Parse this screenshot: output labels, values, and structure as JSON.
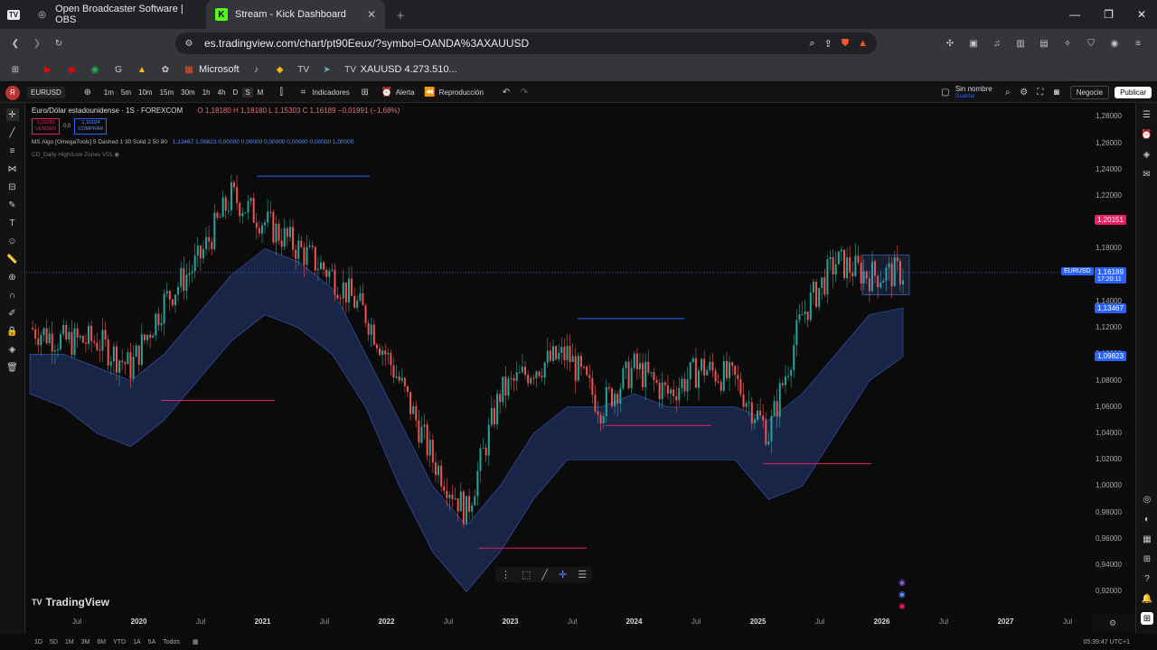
{
  "browser": {
    "tabs": [
      {
        "title": "Open Broadcaster Software | OBS"
      },
      {
        "title": "Stream - Kick Dashboard"
      }
    ],
    "url": "es.tradingview.com/chart/pt90Eeux/?symbol=OANDA%3AXAUUSD",
    "bookmarks": [
      "Microsoft",
      "XAUUSD 4.273.510..."
    ]
  },
  "toolbar": {
    "symbol": "EURUSD",
    "timeframes": [
      "1m",
      "5m",
      "10m",
      "15m",
      "30m",
      "1h",
      "4h",
      "D",
      "S",
      "M"
    ],
    "indicators_label": "Indicadores",
    "alert_label": "Alerta",
    "replay_label": "Reproducción",
    "layout_name": "Sin nombre",
    "layout_sub": "Guardar",
    "trade_label": "Negocie",
    "publish_label": "Publicar"
  },
  "legend": {
    "title": "Euro/Dólar estadounidense · 1S · FOREXCOM",
    "ohlc": "O 1,18180  H 1,18180  L 1,15303  C 1,16189  −0,01991 (−1,68%)",
    "sell_price": "1,16189",
    "sell_label": "VENDER",
    "spread": "0,0",
    "buy_price": "1,16184",
    "buy_label": "COMPRAR",
    "indicator1": "MS Algo [OmegaTools] 5 Dashed 1 30 Solid 2 50 80",
    "indicator1_values": "1,13467  1,09823  0,00000  0,00000  0,00000  0,00000  0,00000  1,00000",
    "indicator2": "CD_Daily High/Low Zones V01"
  },
  "price_scale": {
    "ticks": [
      "1,28000",
      "1,26000",
      "1,24000",
      "1,22000",
      "1,20000",
      "1,18000",
      "1,16000",
      "1,14000",
      "1,12000",
      "1,10000",
      "1,08000",
      "1,06000",
      "1,04000",
      "1,02000",
      "1,00000",
      "0,98000",
      "0,96000",
      "0,94000",
      "0,92000"
    ],
    "badges": [
      {
        "label": "",
        "value": "1,20151",
        "color": "#e91e63"
      },
      {
        "label": "EURUSD",
        "value": "1,16189",
        "sub": "17:20:11",
        "color": "#2962ff"
      },
      {
        "label": "",
        "value": "1,13467",
        "color": "#2962ff"
      },
      {
        "label": "",
        "value": "1,09823",
        "color": "#2962ff"
      }
    ]
  },
  "time_axis": [
    "Jul",
    "2020",
    "Jul",
    "2021",
    "Jul",
    "2022",
    "Jul",
    "2023",
    "Jul",
    "2024",
    "Jul",
    "2025",
    "Jul",
    "2026",
    "Jul",
    "2027",
    "Jul"
  ],
  "watermark": "TradingView",
  "bottom": {
    "ranges": [
      "1D",
      "5D",
      "1M",
      "3M",
      "6M",
      "YTD",
      "1A",
      "5A",
      "Todos"
    ],
    "clock": "05:39:47 UTC+1"
  },
  "chart_data": {
    "type": "candlestick",
    "symbol": "EURUSD",
    "timeframe": "1S",
    "ylim": [
      0.91,
      1.285
    ],
    "x": [
      "2019-07",
      "2019-10",
      "2020-01",
      "2020-04",
      "2020-07",
      "2020-10",
      "2021-01",
      "2021-04",
      "2021-07",
      "2021-10",
      "2022-01",
      "2022-04",
      "2022-07",
      "2022-10",
      "2023-01",
      "2023-04",
      "2023-07",
      "2023-10",
      "2024-01",
      "2024-04",
      "2024-07",
      "2024-10",
      "2025-01",
      "2025-04",
      "2025-07",
      "2025-10",
      "2026-01"
    ],
    "close": [
      1.12,
      1.11,
      1.11,
      1.09,
      1.14,
      1.17,
      1.22,
      1.2,
      1.18,
      1.16,
      1.13,
      1.08,
      1.02,
      0.98,
      1.07,
      1.09,
      1.1,
      1.06,
      1.09,
      1.07,
      1.09,
      1.08,
      1.04,
      1.13,
      1.17,
      1.16,
      1.162
    ],
    "band_upper": [
      1.1,
      1.1,
      1.09,
      1.08,
      1.1,
      1.13,
      1.16,
      1.18,
      1.17,
      1.15,
      1.1,
      1.05,
      1.0,
      0.97,
      1.0,
      1.04,
      1.06,
      1.06,
      1.07,
      1.06,
      1.06,
      1.06,
      1.05,
      1.07,
      1.1,
      1.13,
      1.135
    ],
    "band_lower": [
      1.07,
      1.06,
      1.04,
      1.03,
      1.05,
      1.08,
      1.11,
      1.13,
      1.12,
      1.1,
      1.06,
      1.0,
      0.95,
      0.92,
      0.95,
      0.99,
      1.02,
      1.02,
      1.02,
      1.02,
      1.02,
      1.02,
      0.99,
      1.0,
      1.04,
      1.08,
      1.098
    ],
    "levels": [
      {
        "price": 1.235,
        "color": "#2962ff"
      },
      {
        "price": 1.065,
        "color": "#e91e63"
      },
      {
        "price": 1.127,
        "color": "#2962ff"
      },
      {
        "price": 1.046,
        "color": "#e91e63"
      },
      {
        "price": 1.017,
        "color": "#e91e63"
      },
      {
        "price": 0.953,
        "color": "#e91e63"
      }
    ],
    "current_price": 1.16189
  }
}
